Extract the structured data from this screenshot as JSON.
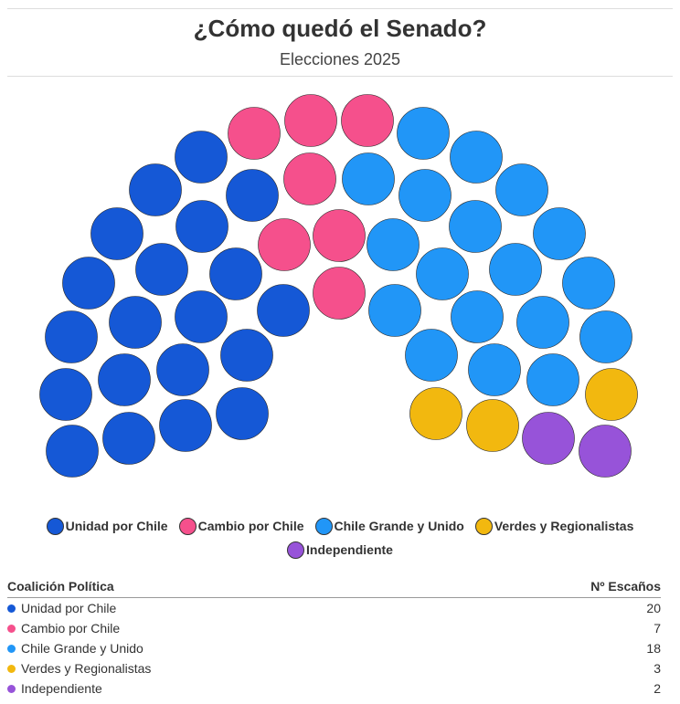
{
  "title": "¿Cómo quedó el Senado?",
  "subtitle": "Elecciones 2025",
  "chart_data": {
    "type": "parliament",
    "total_seats": 50,
    "parties": [
      {
        "name": "Unidad por Chile",
        "seats": 20,
        "color": "#1558d6"
      },
      {
        "name": "Cambio por Chile",
        "seats": 7,
        "color": "#f5508c"
      },
      {
        "name": "Chile Grande y Unido",
        "seats": 18,
        "color": "#2196f7"
      },
      {
        "name": "Verdes y Regionalistas",
        "seats": 3,
        "color": "#f2b80f"
      },
      {
        "name": "Independiente",
        "seats": 2,
        "color": "#9753d9"
      }
    ]
  },
  "table": {
    "header_name": "Coalición Política",
    "header_seats": "Nº Escaños"
  }
}
